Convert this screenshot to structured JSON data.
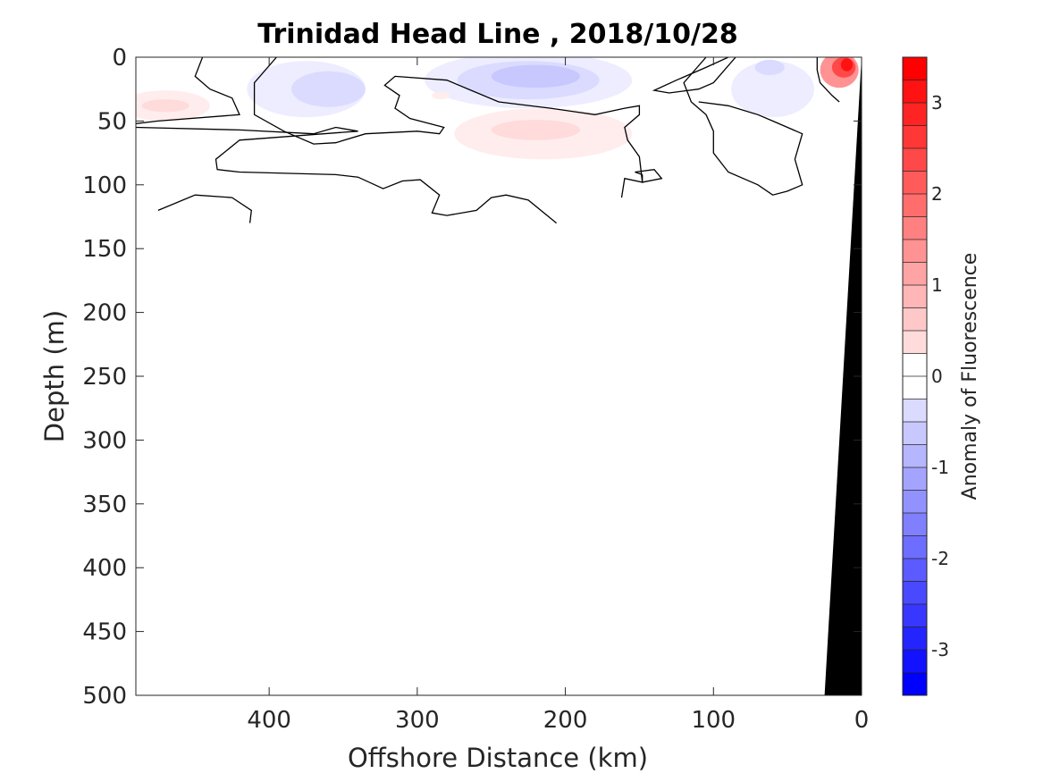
{
  "chart_data": {
    "type": "heatmap",
    "title": "Trinidad Head Line , 2018/10/28",
    "xlabel": "Offshore Distance (km)",
    "ylabel": "Depth (m)",
    "xlim": [
      490,
      0
    ],
    "ylim": [
      500,
      0
    ],
    "x_ticks": [
      400,
      300,
      200,
      100,
      0
    ],
    "y_ticks": [
      0,
      50,
      100,
      150,
      200,
      250,
      300,
      350,
      400,
      450,
      500
    ],
    "colorbar": {
      "label": "Anomaly of Fluorescence",
      "range": [
        -3.5,
        3.5
      ],
      "step": 0.25,
      "ticks": [
        3,
        2,
        1,
        0,
        -1,
        -2,
        -3
      ],
      "negative_color": "#0000ff",
      "positive_color": "#ff0000"
    },
    "anomaly_patches": [
      {
        "x": 375,
        "y": 25,
        "rx": 40,
        "ry": 22,
        "value": -0.25
      },
      {
        "x": 360,
        "y": 25,
        "rx": 25,
        "ry": 14,
        "value": -0.5
      },
      {
        "x": 225,
        "y": 18,
        "rx": 70,
        "ry": 22,
        "value": -0.25
      },
      {
        "x": 225,
        "y": 18,
        "rx": 48,
        "ry": 15,
        "value": -0.5
      },
      {
        "x": 220,
        "y": 15,
        "rx": 30,
        "ry": 9,
        "value": -0.75
      },
      {
        "x": 60,
        "y": 25,
        "rx": 28,
        "ry": 22,
        "value": -0.25
      },
      {
        "x": 62,
        "y": 8,
        "rx": 10,
        "ry": 6,
        "value": -0.5
      },
      {
        "x": 470,
        "y": 38,
        "rx": 30,
        "ry": 12,
        "value": 0.25
      },
      {
        "x": 470,
        "y": 38,
        "rx": 16,
        "ry": 5,
        "value": 0.5
      },
      {
        "x": 215,
        "y": 60,
        "rx": 60,
        "ry": 20,
        "value": 0.25
      },
      {
        "x": 220,
        "y": 57,
        "rx": 30,
        "ry": 8,
        "value": 0.5
      },
      {
        "x": 284,
        "y": 30,
        "rx": 6,
        "ry": 3,
        "value": 0.25
      },
      {
        "x": 15,
        "y": 10,
        "rx": 13,
        "ry": 14,
        "value": 1.5
      },
      {
        "x": 12,
        "y": 8,
        "rx": 8,
        "ry": 8,
        "value": 2.5
      },
      {
        "x": 10,
        "y": 6,
        "rx": 4,
        "ry": 5,
        "value": 3.25
      }
    ],
    "zero_contours": [
      [
        [
          445,
          0
        ],
        [
          450,
          15
        ],
        [
          440,
          25
        ],
        [
          425,
          32
        ],
        [
          420,
          45
        ],
        [
          475,
          50
        ],
        [
          490,
          52
        ]
      ],
      [
        [
          490,
          55
        ],
        [
          420,
          57
        ],
        [
          370,
          60
        ],
        [
          355,
          55
        ],
        [
          340,
          58
        ],
        [
          420,
          65
        ],
        [
          436,
          80
        ],
        [
          435,
          88
        ],
        [
          420,
          90
        ],
        [
          355,
          92
        ],
        [
          340,
          94
        ],
        [
          323,
          103
        ],
        [
          310,
          97
        ],
        [
          298,
          96
        ],
        [
          285,
          108
        ],
        [
          290,
          122
        ],
        [
          280,
          124
        ],
        [
          260,
          120
        ],
        [
          250,
          110
        ],
        [
          240,
          108
        ],
        [
          225,
          112
        ],
        [
          206,
          130
        ]
      ],
      [
        [
          475,
          120
        ],
        [
          450,
          108
        ],
        [
          425,
          110
        ],
        [
          412,
          120
        ],
        [
          413,
          130
        ]
      ],
      [
        [
          395,
          0
        ],
        [
          410,
          20
        ],
        [
          410,
          45
        ],
        [
          390,
          58
        ],
        [
          370,
          68
        ],
        [
          355,
          67
        ],
        [
          335,
          60
        ],
        [
          300,
          58
        ],
        [
          285,
          60
        ],
        [
          282,
          55
        ],
        [
          305,
          48
        ],
        [
          315,
          40
        ],
        [
          312,
          30
        ],
        [
          322,
          22
        ],
        [
          315,
          15
        ],
        [
          280,
          18
        ],
        [
          245,
          35
        ],
        [
          210,
          40
        ],
        [
          180,
          45
        ],
        [
          160,
          40
        ],
        [
          150,
          38
        ],
        [
          150,
          45
        ],
        [
          160,
          55
        ],
        [
          158,
          65
        ],
        [
          150,
          78
        ],
        [
          148,
          98
        ],
        [
          160,
          95
        ],
        [
          162,
          110
        ]
      ],
      [
        [
          148,
          92
        ],
        [
          148,
          98
        ],
        [
          135,
          95
        ],
        [
          140,
          88
        ],
        [
          153,
          90
        ],
        [
          148,
          92
        ]
      ],
      [
        [
          85,
          0
        ],
        [
          100,
          20
        ],
        [
          110,
          25
        ],
        [
          130,
          28
        ],
        [
          140,
          26
        ],
        [
          125,
          18
        ],
        [
          105,
          8
        ],
        [
          90,
          0
        ]
      ],
      [
        [
          105,
          0
        ],
        [
          120,
          20
        ],
        [
          115,
          35
        ],
        [
          105,
          45
        ],
        [
          100,
          58
        ],
        [
          100,
          75
        ],
        [
          90,
          90
        ],
        [
          70,
          100
        ],
        [
          60,
          108
        ],
        [
          50,
          105
        ],
        [
          40,
          100
        ],
        [
          45,
          80
        ],
        [
          40,
          60
        ],
        [
          60,
          50
        ],
        [
          70,
          45
        ],
        [
          90,
          38
        ],
        [
          110,
          35
        ]
      ],
      [
        [
          30,
          0
        ],
        [
          30,
          10
        ],
        [
          28,
          20
        ],
        [
          20,
          30
        ],
        [
          15,
          35
        ]
      ]
    ],
    "seafloor": [
      [
        0,
        0
      ],
      [
        25,
        500
      ],
      [
        0,
        500
      ]
    ]
  }
}
